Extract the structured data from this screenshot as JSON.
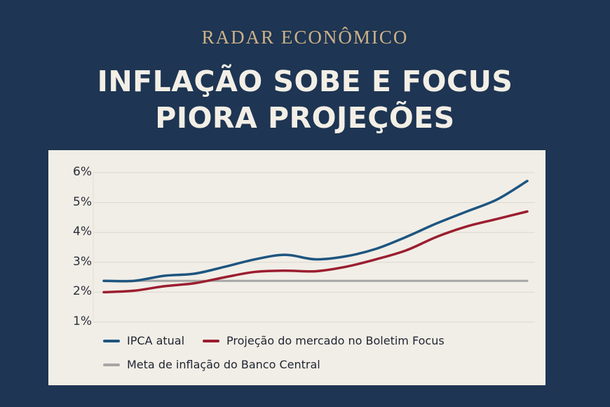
{
  "header": {
    "kicker": "RADAR ECONÔMICO",
    "headline_line1": "INFLAÇÃO SOBE E FOCUS",
    "headline_line2": "PIORA PROJEÇÕES"
  },
  "colors": {
    "background": "#1e3553",
    "card": "#f1eee7",
    "kicker": "#cdb187",
    "ipca": "#1d5580",
    "focus": "#9b1e30",
    "meta": "#a6a6a6"
  },
  "chart_data": {
    "type": "line",
    "title": "INFLAÇÃO SOBE E FOCUS PIORA PROJEÇÕES",
    "xlabel": "",
    "ylabel": "",
    "ylim": [
      1,
      6
    ],
    "yticks": [
      "6%",
      "5%",
      "4%",
      "3%",
      "2%",
      "1%"
    ],
    "grid": true,
    "legend_position": "bottom",
    "x": [
      0,
      1,
      2,
      3,
      4,
      5,
      6,
      7,
      8,
      9,
      10,
      11,
      12,
      13,
      14
    ],
    "series": [
      {
        "name": "IPCA atual",
        "color": "#1d5580",
        "values": [
          2.38,
          2.38,
          2.55,
          2.62,
          2.85,
          3.1,
          3.25,
          3.1,
          3.2,
          3.45,
          3.85,
          4.3,
          4.7,
          5.1,
          5.72
        ]
      },
      {
        "name": "Projeção do mercado no Boletim Focus",
        "color": "#9b1e30",
        "values": [
          2.0,
          2.05,
          2.2,
          2.3,
          2.5,
          2.68,
          2.72,
          2.7,
          2.85,
          3.1,
          3.4,
          3.85,
          4.2,
          4.45,
          4.7
        ]
      },
      {
        "name": "Meta de inflação do Banco Central",
        "color": "#a6a6a6",
        "values": [
          2.38,
          2.38,
          2.38,
          2.38,
          2.38,
          2.38,
          2.38,
          2.38,
          2.38,
          2.38,
          2.38,
          2.38,
          2.38,
          2.38,
          2.38
        ]
      }
    ]
  },
  "legend": {
    "items": [
      {
        "label": "IPCA atual"
      },
      {
        "label": "Projeção do mercado no Boletim Focus"
      },
      {
        "label": "Meta de inflação do Banco Central"
      }
    ]
  }
}
